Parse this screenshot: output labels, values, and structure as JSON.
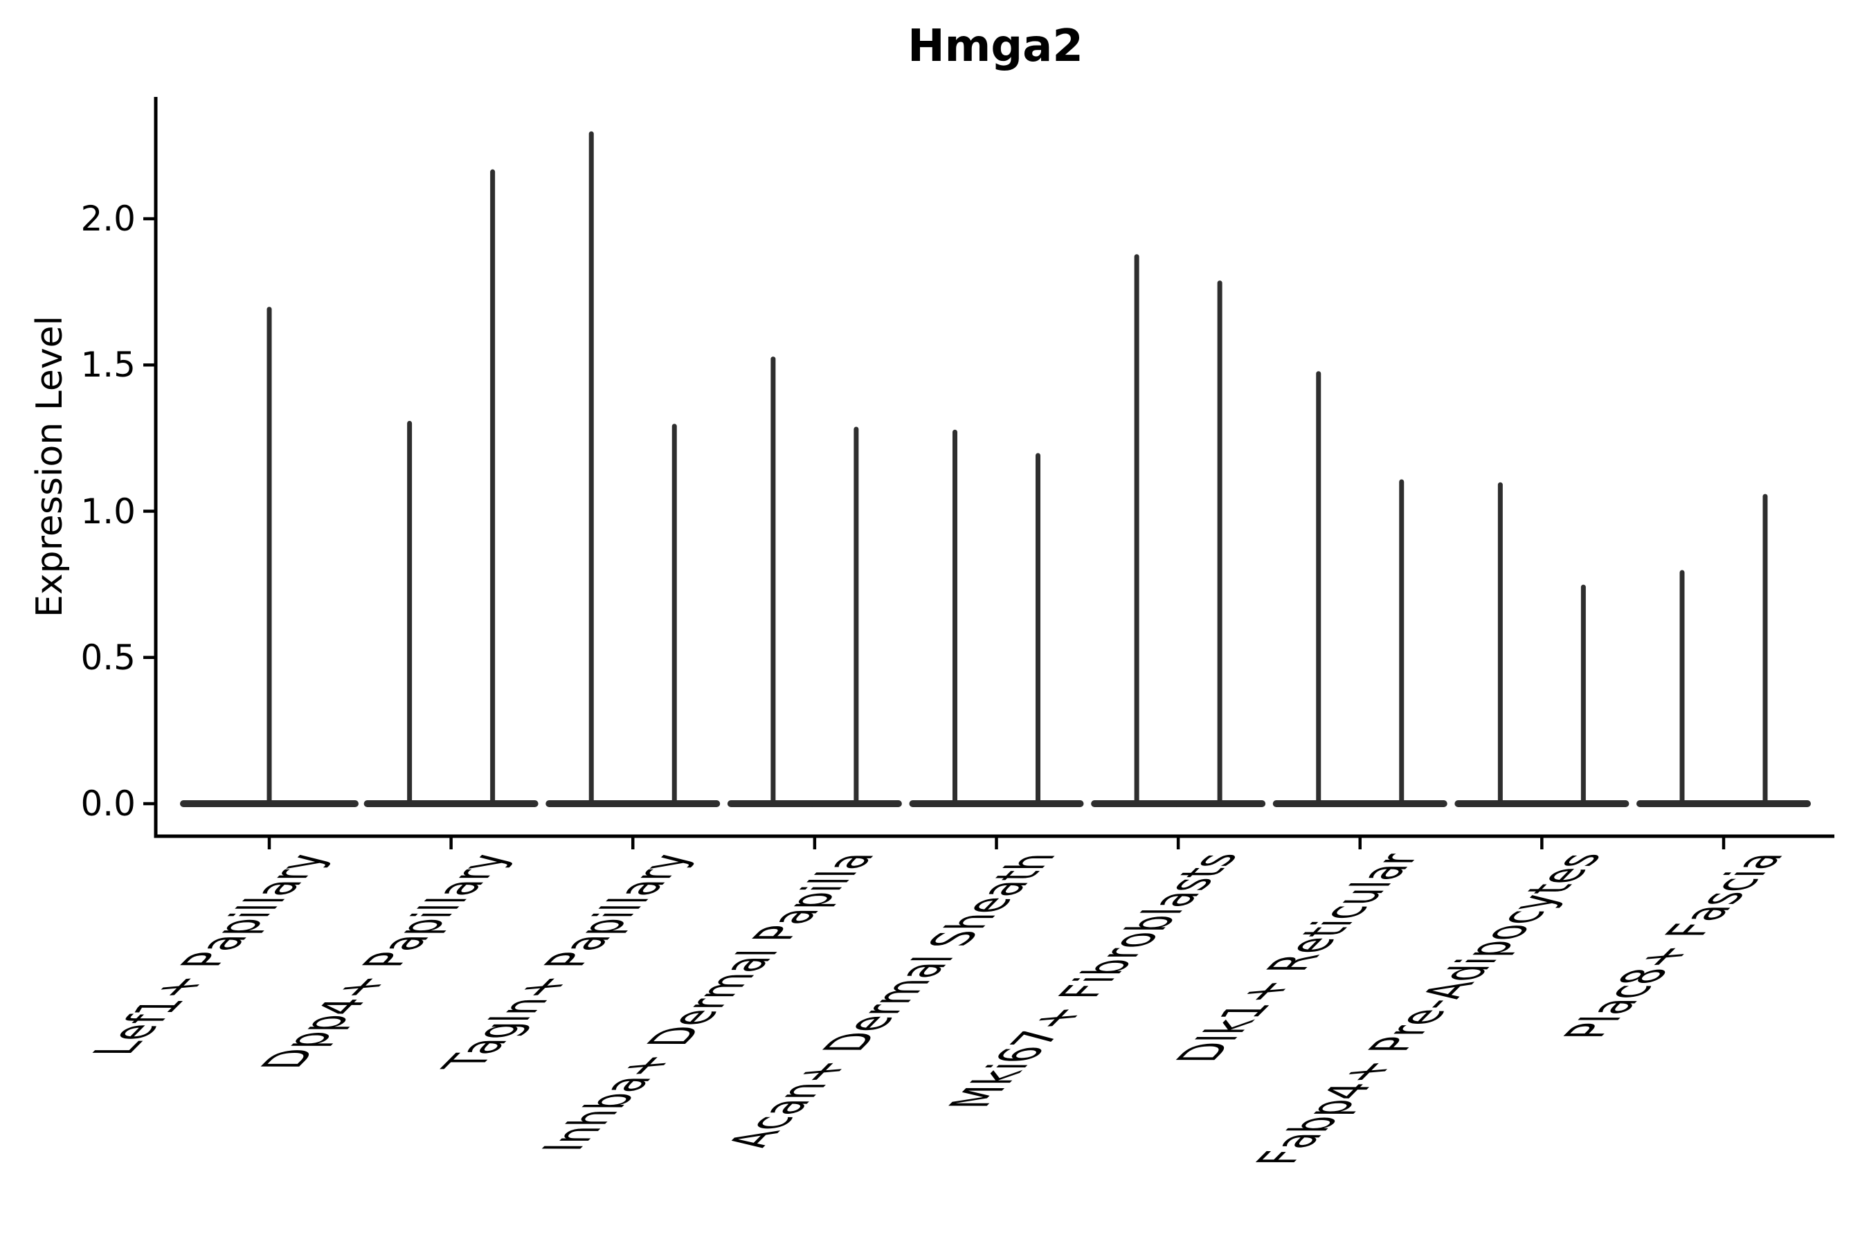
{
  "title": "Hmga2",
  "y_axis": {
    "label": "Expression Level",
    "tick_labels": [
      "0.0",
      "0.5",
      "1.0",
      "1.5",
      "2.0"
    ],
    "tick_values": [
      0.0,
      0.5,
      1.0,
      1.5,
      2.0
    ]
  },
  "chart_data": {
    "type": "violin",
    "title": "Hmga2",
    "xlabel": "",
    "ylabel": "Expression Level",
    "ylim": [
      0,
      2.42
    ],
    "yticks": [
      0.0,
      0.5,
      1.0,
      1.5,
      2.0
    ],
    "grid": false,
    "legend_position": "none",
    "style": "needle-thin split violins; wide flat density base at expression 0 with a narrow spike rising to the maximum expression value; first category has a single centered violin, all others have a pair",
    "categories": [
      "Lef1+ Papillary",
      "Dpp4+ Papillary",
      "Tagln+ Papillary",
      "Inhba+ Dermal Papilla",
      "Acan+ Dermal Sheath",
      "Mki67+ Fibroblasts",
      "Dlk1+ Reticular",
      "Fabp4+ Pre-Adipocytes",
      "Plac8+ Fascia"
    ],
    "violin_spike_maxima": [
      [
        1.7
      ],
      [
        1.31,
        2.17
      ],
      [
        2.3,
        1.3
      ],
      [
        1.53,
        1.29
      ],
      [
        1.28,
        1.2
      ],
      [
        1.88,
        1.79
      ],
      [
        1.48,
        1.11
      ],
      [
        1.1,
        0.75
      ],
      [
        0.8,
        1.06
      ]
    ],
    "baseline_value": 0.0,
    "colors": {
      "violin": "#2e2e2e",
      "axis": "#000000",
      "background": "#ffffff"
    }
  }
}
